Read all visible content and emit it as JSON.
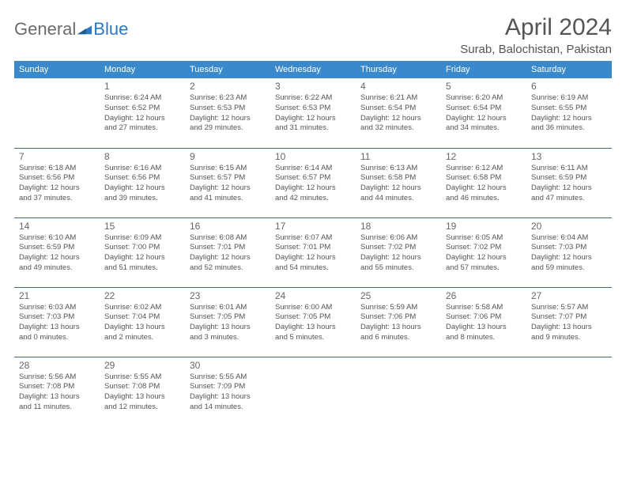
{
  "brand": {
    "part1": "General",
    "part2": "Blue"
  },
  "title": "April 2024",
  "location": "Surab, Balochistan, Pakistan",
  "colors": {
    "header_bg": "#3a8acb",
    "header_text": "#ffffff",
    "row_border": "#3a6a9a",
    "text_primary": "#555555",
    "text_muted": "#666666",
    "brand_gray": "#6b6b6b",
    "brand_blue": "#2b79c2",
    "background": "#ffffff"
  },
  "typography": {
    "title_size_pt": 30,
    "location_size_pt": 15,
    "header_size_pt": 11,
    "daynum_size_pt": 12,
    "body_size_pt": 9.5,
    "font_family": "Arial"
  },
  "day_labels": [
    "Sunday",
    "Monday",
    "Tuesday",
    "Wednesday",
    "Thursday",
    "Friday",
    "Saturday"
  ],
  "weeks": [
    [
      {},
      {
        "n": "1",
        "sunrise": "Sunrise: 6:24 AM",
        "sunset": "Sunset: 6:52 PM",
        "d1": "Daylight: 12 hours",
        "d2": "and 27 minutes."
      },
      {
        "n": "2",
        "sunrise": "Sunrise: 6:23 AM",
        "sunset": "Sunset: 6:53 PM",
        "d1": "Daylight: 12 hours",
        "d2": "and 29 minutes."
      },
      {
        "n": "3",
        "sunrise": "Sunrise: 6:22 AM",
        "sunset": "Sunset: 6:53 PM",
        "d1": "Daylight: 12 hours",
        "d2": "and 31 minutes."
      },
      {
        "n": "4",
        "sunrise": "Sunrise: 6:21 AM",
        "sunset": "Sunset: 6:54 PM",
        "d1": "Daylight: 12 hours",
        "d2": "and 32 minutes."
      },
      {
        "n": "5",
        "sunrise": "Sunrise: 6:20 AM",
        "sunset": "Sunset: 6:54 PM",
        "d1": "Daylight: 12 hours",
        "d2": "and 34 minutes."
      },
      {
        "n": "6",
        "sunrise": "Sunrise: 6:19 AM",
        "sunset": "Sunset: 6:55 PM",
        "d1": "Daylight: 12 hours",
        "d2": "and 36 minutes."
      }
    ],
    [
      {
        "n": "7",
        "sunrise": "Sunrise: 6:18 AM",
        "sunset": "Sunset: 6:56 PM",
        "d1": "Daylight: 12 hours",
        "d2": "and 37 minutes."
      },
      {
        "n": "8",
        "sunrise": "Sunrise: 6:16 AM",
        "sunset": "Sunset: 6:56 PM",
        "d1": "Daylight: 12 hours",
        "d2": "and 39 minutes."
      },
      {
        "n": "9",
        "sunrise": "Sunrise: 6:15 AM",
        "sunset": "Sunset: 6:57 PM",
        "d1": "Daylight: 12 hours",
        "d2": "and 41 minutes."
      },
      {
        "n": "10",
        "sunrise": "Sunrise: 6:14 AM",
        "sunset": "Sunset: 6:57 PM",
        "d1": "Daylight: 12 hours",
        "d2": "and 42 minutes."
      },
      {
        "n": "11",
        "sunrise": "Sunrise: 6:13 AM",
        "sunset": "Sunset: 6:58 PM",
        "d1": "Daylight: 12 hours",
        "d2": "and 44 minutes."
      },
      {
        "n": "12",
        "sunrise": "Sunrise: 6:12 AM",
        "sunset": "Sunset: 6:58 PM",
        "d1": "Daylight: 12 hours",
        "d2": "and 46 minutes."
      },
      {
        "n": "13",
        "sunrise": "Sunrise: 6:11 AM",
        "sunset": "Sunset: 6:59 PM",
        "d1": "Daylight: 12 hours",
        "d2": "and 47 minutes."
      }
    ],
    [
      {
        "n": "14",
        "sunrise": "Sunrise: 6:10 AM",
        "sunset": "Sunset: 6:59 PM",
        "d1": "Daylight: 12 hours",
        "d2": "and 49 minutes."
      },
      {
        "n": "15",
        "sunrise": "Sunrise: 6:09 AM",
        "sunset": "Sunset: 7:00 PM",
        "d1": "Daylight: 12 hours",
        "d2": "and 51 minutes."
      },
      {
        "n": "16",
        "sunrise": "Sunrise: 6:08 AM",
        "sunset": "Sunset: 7:01 PM",
        "d1": "Daylight: 12 hours",
        "d2": "and 52 minutes."
      },
      {
        "n": "17",
        "sunrise": "Sunrise: 6:07 AM",
        "sunset": "Sunset: 7:01 PM",
        "d1": "Daylight: 12 hours",
        "d2": "and 54 minutes."
      },
      {
        "n": "18",
        "sunrise": "Sunrise: 6:06 AM",
        "sunset": "Sunset: 7:02 PM",
        "d1": "Daylight: 12 hours",
        "d2": "and 55 minutes."
      },
      {
        "n": "19",
        "sunrise": "Sunrise: 6:05 AM",
        "sunset": "Sunset: 7:02 PM",
        "d1": "Daylight: 12 hours",
        "d2": "and 57 minutes."
      },
      {
        "n": "20",
        "sunrise": "Sunrise: 6:04 AM",
        "sunset": "Sunset: 7:03 PM",
        "d1": "Daylight: 12 hours",
        "d2": "and 59 minutes."
      }
    ],
    [
      {
        "n": "21",
        "sunrise": "Sunrise: 6:03 AM",
        "sunset": "Sunset: 7:03 PM",
        "d1": "Daylight: 13 hours",
        "d2": "and 0 minutes."
      },
      {
        "n": "22",
        "sunrise": "Sunrise: 6:02 AM",
        "sunset": "Sunset: 7:04 PM",
        "d1": "Daylight: 13 hours",
        "d2": "and 2 minutes."
      },
      {
        "n": "23",
        "sunrise": "Sunrise: 6:01 AM",
        "sunset": "Sunset: 7:05 PM",
        "d1": "Daylight: 13 hours",
        "d2": "and 3 minutes."
      },
      {
        "n": "24",
        "sunrise": "Sunrise: 6:00 AM",
        "sunset": "Sunset: 7:05 PM",
        "d1": "Daylight: 13 hours",
        "d2": "and 5 minutes."
      },
      {
        "n": "25",
        "sunrise": "Sunrise: 5:59 AM",
        "sunset": "Sunset: 7:06 PM",
        "d1": "Daylight: 13 hours",
        "d2": "and 6 minutes."
      },
      {
        "n": "26",
        "sunrise": "Sunrise: 5:58 AM",
        "sunset": "Sunset: 7:06 PM",
        "d1": "Daylight: 13 hours",
        "d2": "and 8 minutes."
      },
      {
        "n": "27",
        "sunrise": "Sunrise: 5:57 AM",
        "sunset": "Sunset: 7:07 PM",
        "d1": "Daylight: 13 hours",
        "d2": "and 9 minutes."
      }
    ],
    [
      {
        "n": "28",
        "sunrise": "Sunrise: 5:56 AM",
        "sunset": "Sunset: 7:08 PM",
        "d1": "Daylight: 13 hours",
        "d2": "and 11 minutes."
      },
      {
        "n": "29",
        "sunrise": "Sunrise: 5:55 AM",
        "sunset": "Sunset: 7:08 PM",
        "d1": "Daylight: 13 hours",
        "d2": "and 12 minutes."
      },
      {
        "n": "30",
        "sunrise": "Sunrise: 5:55 AM",
        "sunset": "Sunset: 7:09 PM",
        "d1": "Daylight: 13 hours",
        "d2": "and 14 minutes."
      },
      {},
      {},
      {},
      {}
    ]
  ]
}
